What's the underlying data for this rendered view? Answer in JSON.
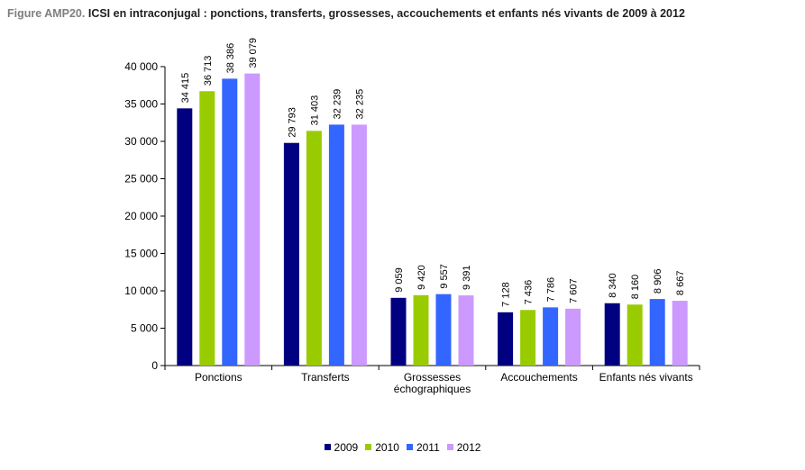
{
  "header": {
    "prefix": "Figure AMP20.",
    "title": "ICSI en intraconjugal : ponctions, transferts, grossesses, accouchements et enfants nés vivants de 2009 à 2012"
  },
  "colors": {
    "2009": "#000080",
    "2010": "#99cc00",
    "2011": "#3366ff",
    "2012": "#cc99ff"
  },
  "chart_data": {
    "type": "bar",
    "title": "ICSI en intraconjugal : ponctions, transferts, grossesses, accouchements et enfants nés vivants de 2009 à 2012",
    "xlabel": "",
    "ylabel": "",
    "ylim": [
      0,
      40000
    ],
    "yticks": [
      0,
      5000,
      10000,
      15000,
      20000,
      25000,
      30000,
      35000,
      40000
    ],
    "ytick_labels": [
      "0",
      "5 000",
      "10 000",
      "15 000",
      "20 000",
      "25 000",
      "30 000",
      "35 000",
      "40 000"
    ],
    "categories": [
      [
        "Ponctions"
      ],
      [
        "Transferts"
      ],
      [
        "Grossesses",
        "échographiques"
      ],
      [
        "Accouchements"
      ],
      [
        "Enfants nés vivants"
      ]
    ],
    "series": [
      {
        "name": "2009",
        "values": [
          34415,
          29793,
          9059,
          7128,
          8340
        ],
        "labels": [
          "34 415",
          "29 793",
          "9 059",
          "7 128",
          "8 340"
        ]
      },
      {
        "name": "2010",
        "values": [
          36713,
          31403,
          9420,
          7436,
          8160
        ],
        "labels": [
          "36 713",
          "31 403",
          "9 420",
          "7 436",
          "8 160"
        ]
      },
      {
        "name": "2011",
        "values": [
          38386,
          32239,
          9557,
          7786,
          8906
        ],
        "labels": [
          "38 386",
          "32 239",
          "9 557",
          "7 786",
          "8 906"
        ]
      },
      {
        "name": "2012",
        "values": [
          39079,
          32235,
          9391,
          7607,
          8667
        ],
        "labels": [
          "39 079",
          "32 235",
          "9 391",
          "7 607",
          "8 667"
        ]
      }
    ],
    "grid": false,
    "legend_position": "bottom"
  }
}
